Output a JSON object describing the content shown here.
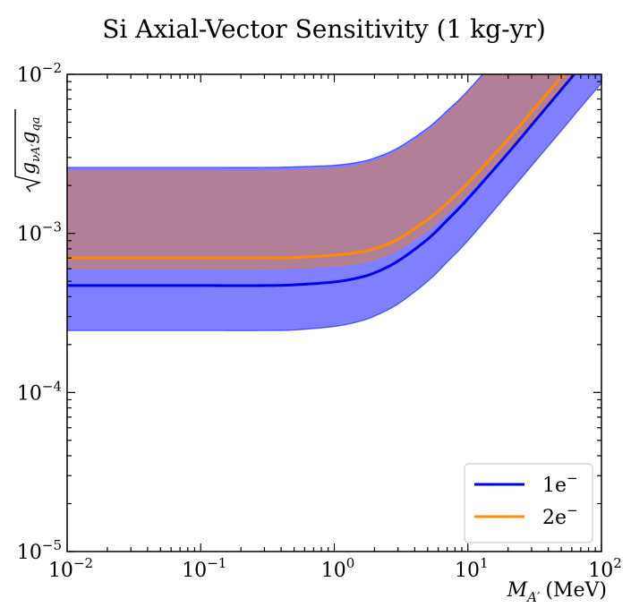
{
  "chart_data": {
    "type": "area",
    "title": "Si Axial-Vector Sensitivity (1 kg-yr)",
    "xlabel": "M_{A'} (MeV)",
    "xlabel_parts": {
      "symbol": "M",
      "subscript": "A′",
      "unit": "(MeV)"
    },
    "ylabel": "sqrt(g_{νA'} g_{qa})",
    "ylabel_parts": {
      "g1": "g",
      "sub1": "νA′",
      "g2": "g",
      "sub2": "qa"
    },
    "x_scale": "log",
    "y_scale": "log",
    "xlim": [
      0.01,
      100
    ],
    "ylim": [
      1e-05,
      0.01
    ],
    "x_ticks": [
      {
        "value": 0.01,
        "base": "10",
        "exp": "−2"
      },
      {
        "value": 0.1,
        "base": "10",
        "exp": "−1"
      },
      {
        "value": 1,
        "base": "10",
        "exp": "0"
      },
      {
        "value": 10,
        "base": "10",
        "exp": "1"
      },
      {
        "value": 100,
        "base": "10",
        "exp": "2"
      }
    ],
    "y_ticks": [
      {
        "value": 1e-05,
        "base": "10",
        "exp": "−5"
      },
      {
        "value": 0.0001,
        "base": "10",
        "exp": "−4"
      },
      {
        "value": 0.001,
        "base": "10",
        "exp": "−3"
      },
      {
        "value": 0.01,
        "base": "10",
        "exp": "−2"
      }
    ],
    "grid": false,
    "legend_position": "bottom-right",
    "series": [
      {
        "name": "1e⁻",
        "name_parts": {
          "base": "1e",
          "sup": "−"
        },
        "color": "#0000e6",
        "band_color": "#0000ff",
        "band_opacity": 0.5,
        "x": [
          0.01,
          0.03,
          0.1,
          0.3,
          0.5,
          1,
          1.5,
          2,
          3,
          5,
          7,
          10,
          20,
          30,
          50,
          70,
          100
        ],
        "center": [
          0.00047,
          0.00047,
          0.00047,
          0.00047,
          0.000475,
          0.000495,
          0.000525,
          0.000565,
          0.00067,
          0.00092,
          0.00121,
          0.00165,
          0.0032,
          0.0048,
          0.008,
          0.0112,
          0.016
        ],
        "lower": [
          0.000245,
          0.000245,
          0.000245,
          0.000245,
          0.000247,
          0.00026,
          0.000278,
          0.000302,
          0.00036,
          0.0005,
          0.00066,
          0.0009,
          0.00178,
          0.00266,
          0.00442,
          0.0062,
          0.0088
        ],
        "upper": [
          0.0026,
          0.0026,
          0.0026,
          0.0026,
          0.00262,
          0.00268,
          0.0028,
          0.00298,
          0.00345,
          0.0046,
          0.0059,
          0.0079,
          0.0153,
          0.0226,
          0.0375,
          0.0525,
          0.075
        ]
      },
      {
        "name": "2e⁻",
        "name_parts": {
          "base": "2e",
          "sup": "−"
        },
        "color": "#ff8c00",
        "band_color": "#ff7f00",
        "band_opacity": 0.4,
        "x": [
          0.01,
          0.03,
          0.1,
          0.3,
          0.5,
          1,
          1.5,
          2,
          3,
          5,
          7,
          10,
          20,
          30,
          50,
          70,
          100
        ],
        "center": [
          0.0007,
          0.0007,
          0.0007,
          0.0007,
          0.000705,
          0.00073,
          0.00076,
          0.0008,
          0.00092,
          0.00122,
          0.00155,
          0.00207,
          0.0039,
          0.0058,
          0.0096,
          0.0134,
          0.019
        ],
        "lower": [
          0.0006,
          0.0006,
          0.0006,
          0.0006,
          0.000605,
          0.000625,
          0.00065,
          0.000685,
          0.00079,
          0.00105,
          0.00134,
          0.00178,
          0.00336,
          0.005,
          0.0083,
          0.0116,
          0.0165
        ],
        "upper": [
          0.00245,
          0.00245,
          0.00245,
          0.00245,
          0.00247,
          0.00253,
          0.00264,
          0.00281,
          0.00326,
          0.00435,
          0.00557,
          0.0075,
          0.0145,
          0.0214,
          0.0355,
          0.0496,
          0.071
        ]
      }
    ]
  }
}
